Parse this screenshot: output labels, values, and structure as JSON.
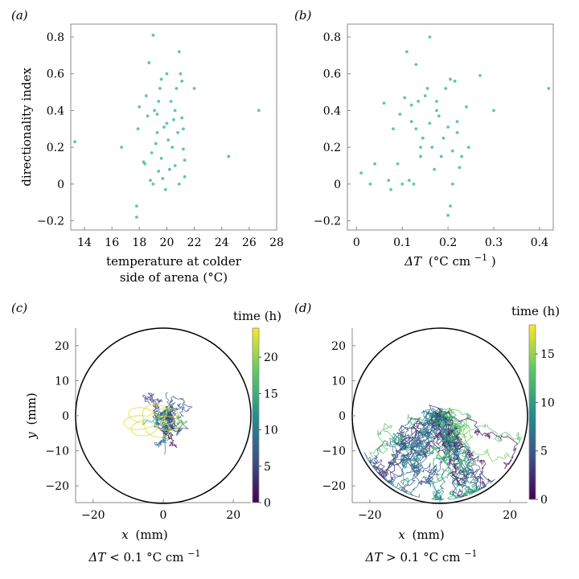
{
  "panels": {
    "a": {
      "label": "(a)",
      "xlabel_line1": "temperature at colder",
      "xlabel_line2": "side of arena (°C)",
      "ylabel": "directionality index"
    },
    "b": {
      "label": "(b)",
      "xlabel_prefix": "ΔT",
      "xlabel_units": "(°C cm",
      "xlabel_exp": "−1",
      "xlabel_close": ")"
    },
    "c": {
      "label": "(c)",
      "xlabel_var": "x",
      "xlabel_units": "(mm)",
      "ylabel_var": "y",
      "ylabel_units": "(mm)",
      "colorbar_label": "time (h)",
      "condition_prefix": "ΔT",
      "condition_mid": " < 0.1  °C cm",
      "condition_exp": "−1"
    },
    "d": {
      "label": "(d)",
      "xlabel_var": "x",
      "xlabel_units": "(mm)",
      "colorbar_label": "time (h)",
      "condition_prefix": "ΔT",
      "condition_mid": " > 0.1  °C cm",
      "condition_exp": "−1"
    }
  },
  "colors": {
    "scatter": "#5fc8a0",
    "frame": "#888888",
    "viridis": [
      "#440154",
      "#3b528b",
      "#21918c",
      "#5ec962",
      "#fde725"
    ]
  },
  "chart_data": [
    {
      "id": "a",
      "type": "scatter",
      "xlim": [
        13,
        28
      ],
      "ylim": [
        -0.25,
        0.87
      ],
      "xticks": [
        14,
        16,
        18,
        20,
        22,
        24,
        26,
        28
      ],
      "yticks": [
        -0.2,
        0,
        0.2,
        0.4,
        0.6,
        0.8
      ],
      "ytick_labels": [
        "−0.2",
        "0",
        "0.2",
        "0.4",
        "0.6",
        "0.8"
      ],
      "points": [
        [
          13.3,
          0.23
        ],
        [
          16.7,
          0.2
        ],
        [
          17.8,
          -0.12
        ],
        [
          17.8,
          -0.18
        ],
        [
          17.9,
          0.3
        ],
        [
          18.0,
          0.42
        ],
        [
          18.3,
          0.12
        ],
        [
          18.4,
          0.11
        ],
        [
          18.5,
          0.48
        ],
        [
          18.7,
          0.66
        ],
        [
          18.8,
          0.02
        ],
        [
          18.9,
          0.17
        ],
        [
          19.0,
          0.81
        ],
        [
          19.0,
          0.0
        ],
        [
          19.1,
          0.4
        ],
        [
          19.2,
          0.22
        ],
        [
          19.3,
          0.38
        ],
        [
          19.3,
          0.28
        ],
        [
          19.4,
          0.45
        ],
        [
          19.5,
          0.52
        ],
        [
          19.6,
          0.57
        ],
        [
          19.6,
          0.14
        ],
        [
          19.7,
          0.03
        ],
        [
          19.8,
          0.31
        ],
        [
          19.9,
          -0.03
        ],
        [
          20.0,
          0.6
        ],
        [
          20.0,
          0.33
        ],
        [
          20.1,
          0.24
        ],
        [
          20.2,
          0.08
        ],
        [
          20.3,
          0.45
        ],
        [
          20.4,
          0.2
        ],
        [
          20.5,
          0.35
        ],
        [
          20.6,
          0.1
        ],
        [
          20.7,
          0.52
        ],
        [
          20.8,
          0.28
        ],
        [
          20.9,
          0.72
        ],
        [
          20.9,
          0.0
        ],
        [
          21.0,
          0.6
        ],
        [
          21.1,
          0.56
        ],
        [
          21.1,
          0.36
        ],
        [
          21.2,
          0.3
        ],
        [
          21.2,
          0.19
        ],
        [
          21.3,
          0.13
        ],
        [
          21.3,
          0.04
        ],
        [
          22.0,
          0.52
        ],
        [
          24.5,
          0.15
        ],
        [
          26.7,
          0.4
        ],
        [
          19.4,
          0.07
        ],
        [
          20.6,
          0.4
        ],
        [
          18.6,
          0.37
        ]
      ]
    },
    {
      "id": "b",
      "type": "scatter",
      "xlim": [
        -0.02,
        0.43
      ],
      "ylim": [
        -0.25,
        0.87
      ],
      "xticks": [
        0,
        0.1,
        0.2,
        0.3,
        0.4
      ],
      "yticks": [
        -0.2,
        0,
        0.2,
        0.4,
        0.6,
        0.8
      ],
      "ytick_labels": [
        "−0.2",
        "0",
        "0.2",
        "0.4",
        "0.6",
        "0.8"
      ],
      "points": [
        [
          0.01,
          0.06
        ],
        [
          0.03,
          0.0
        ],
        [
          0.04,
          0.11
        ],
        [
          0.06,
          0.44
        ],
        [
          0.07,
          0.02
        ],
        [
          0.075,
          -0.03
        ],
        [
          0.09,
          0.11
        ],
        [
          0.095,
          0.38
        ],
        [
          0.1,
          0.0
        ],
        [
          0.105,
          0.47
        ],
        [
          0.11,
          0.72
        ],
        [
          0.115,
          0.02
        ],
        [
          0.12,
          0.43
        ],
        [
          0.125,
          0.0
        ],
        [
          0.13,
          0.65
        ],
        [
          0.13,
          0.3
        ],
        [
          0.135,
          0.45
        ],
        [
          0.14,
          0.2
        ],
        [
          0.14,
          0.15
        ],
        [
          0.145,
          0.25
        ],
        [
          0.15,
          0.48
        ],
        [
          0.155,
          0.52
        ],
        [
          0.16,
          0.8
        ],
        [
          0.16,
          0.33
        ],
        [
          0.165,
          0.2
        ],
        [
          0.17,
          0.08
        ],
        [
          0.175,
          0.4
        ],
        [
          0.18,
          0.37
        ],
        [
          0.185,
          0.15
        ],
        [
          0.19,
          0.25
        ],
        [
          0.195,
          0.52
        ],
        [
          0.2,
          0.31
        ],
        [
          0.205,
          0.57
        ],
        [
          0.205,
          -0.12
        ],
        [
          0.21,
          0.18
        ],
        [
          0.21,
          0.0
        ],
        [
          0.215,
          0.56
        ],
        [
          0.22,
          0.28
        ],
        [
          0.225,
          0.09
        ],
        [
          0.23,
          0.15
        ],
        [
          0.24,
          0.42
        ],
        [
          0.245,
          0.2
        ],
        [
          0.27,
          0.59
        ],
        [
          0.3,
          0.4
        ],
        [
          0.42,
          0.52
        ],
        [
          0.08,
          0.3
        ],
        [
          0.2,
          -0.17
        ],
        [
          0.12,
          0.34
        ],
        [
          0.175,
          0.45
        ],
        [
          0.22,
          0.34
        ]
      ]
    },
    {
      "id": "c",
      "type": "line",
      "description_series": "trajectories",
      "xlim": [
        -25,
        25
      ],
      "ylim": [
        -25,
        25
      ],
      "xticks": [
        -20,
        0,
        20
      ],
      "yticks": [
        -20,
        -10,
        0,
        10,
        20
      ],
      "ytick_labels": [
        "−20",
        "−10",
        "0",
        "10",
        "20"
      ],
      "xtick_labels": [
        "−20",
        "0",
        "20"
      ],
      "arena_radius": 25,
      "colorbar_range": [
        0,
        24
      ],
      "colorbar_ticks": [
        0,
        5,
        10,
        15,
        20
      ]
    },
    {
      "id": "d",
      "type": "line",
      "xlim": [
        -25,
        25
      ],
      "ylim": [
        -25,
        25
      ],
      "xticks": [
        -20,
        0,
        20
      ],
      "yticks": [
        -20,
        -10,
        0,
        10,
        20
      ],
      "ytick_labels": [
        "−20",
        "−10",
        "0",
        "10",
        "20"
      ],
      "xtick_labels": [
        "−20",
        "0",
        "20"
      ],
      "arena_radius": 25,
      "colorbar_range": [
        0,
        18
      ],
      "colorbar_ticks": [
        0,
        5,
        10,
        15
      ]
    }
  ]
}
